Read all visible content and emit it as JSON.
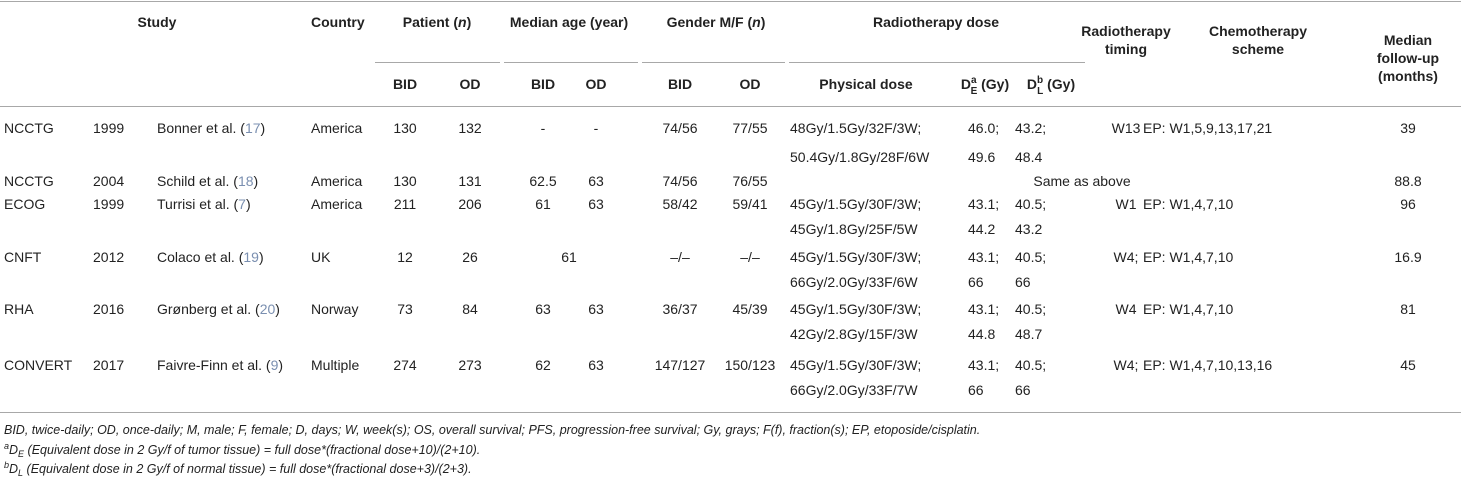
{
  "table": {
    "header": {
      "study": "Study",
      "country": "Country",
      "patient": [
        "Patient (",
        "n",
        ")"
      ],
      "age": "Median age (year)",
      "gender": [
        "Gender M/F (",
        "n",
        ")"
      ],
      "dose": "Radiotherapy dose",
      "timing": "Radiotherapy timing",
      "chemo": "Chemotherapy scheme",
      "followup": "Median follow-up (months)",
      "sub": [
        "BID",
        "OD",
        "BID",
        "OD",
        "BID",
        "OD",
        "Physical dose"
      ],
      "de": [
        "D",
        "a",
        "E",
        " (Gy)"
      ],
      "dl": [
        "D",
        "b",
        "L",
        " (Gy)"
      ]
    },
    "rows": [
      {
        "group": "NCCTG",
        "year": "1999",
        "author": [
          "Bonner et al. (",
          "17",
          ")"
        ],
        "country": "America",
        "patient": [
          "130",
          "132"
        ],
        "age": [
          "-",
          "-"
        ],
        "gender": [
          "74/56",
          "77/55"
        ],
        "dose": [
          "48Gy/1.5Gy/32F/3W;",
          "50.4Gy/1.8Gy/28F/6W"
        ],
        "de": [
          "46.0;",
          "49.6"
        ],
        "dl": [
          "43.2;",
          "48.4"
        ],
        "timing": "W13",
        "chemo": "EP: W1,5,9,13,17,21",
        "followup": "39"
      },
      {
        "group": "NCCTG",
        "year": "2004",
        "author": [
          "Schild et al. (",
          "18",
          ")"
        ],
        "country": "America",
        "patient": [
          "130",
          "131"
        ],
        "age": [
          "62.5",
          "63"
        ],
        "gender": [
          "74/56",
          "76/55"
        ],
        "same": "Same as above",
        "followup": "88.8"
      },
      {
        "group": "ECOG",
        "year": "1999",
        "author": [
          "Turrisi et al. (",
          "7",
          ")"
        ],
        "country": "America",
        "patient": [
          "211",
          "206"
        ],
        "age": [
          "61",
          "63"
        ],
        "gender": [
          "58/42",
          "59/41"
        ],
        "dose": [
          "45Gy/1.5Gy/30F/3W;",
          "45Gy/1.8Gy/25F/5W"
        ],
        "de": [
          "43.1;",
          "44.2"
        ],
        "dl": [
          "40.5;",
          "43.2"
        ],
        "timing": "W1",
        "chemo": "EP: W1,4,7,10",
        "followup": "96"
      },
      {
        "group": "CNFT",
        "year": "2012",
        "author": [
          "Colaco et al. (",
          "19",
          ")"
        ],
        "country": "UK",
        "patient": [
          "12",
          "26"
        ],
        "age": [
          "61"
        ],
        "gender": [
          "–/–",
          "–/–"
        ],
        "dose": [
          "45Gy/1.5Gy/30F/3W;",
          "66Gy/2.0Gy/33F/6W"
        ],
        "de": [
          "43.1;",
          "66"
        ],
        "dl": [
          "40.5;",
          "66"
        ],
        "timing": "W4;",
        "chemo": "EP: W1,4,7,10",
        "followup": "16.9"
      },
      {
        "group": "RHA",
        "year": "2016",
        "author": [
          "Grønberg et al. (",
          "20",
          ")"
        ],
        "country": "Norway",
        "patient": [
          "73",
          "84"
        ],
        "age": [
          "63",
          "63"
        ],
        "gender": [
          "36/37",
          "45/39"
        ],
        "dose": [
          "45Gy/1.5Gy/30F/3W;",
          "42Gy/2.8Gy/15F/3W"
        ],
        "de": [
          "43.1;",
          "44.8"
        ],
        "dl": [
          "40.5;",
          "48.7"
        ],
        "timing": "W4",
        "chemo": "EP: W1,4,7,10",
        "followup": "81"
      },
      {
        "group": "CONVERT",
        "year": "2017",
        "author": [
          "Faivre-Finn et al. (",
          "9",
          ")"
        ],
        "country": "Multiple",
        "patient": [
          "274",
          "273"
        ],
        "age": [
          "62",
          "63"
        ],
        "gender": [
          "147/127",
          "150/123"
        ],
        "dose": [
          "45Gy/1.5Gy/30F/3W;",
          "66Gy/2.0Gy/33F/7W"
        ],
        "de": [
          "43.1;",
          "66"
        ],
        "dl": [
          "40.5;",
          "66"
        ],
        "timing": "W4;",
        "chemo": "EP: W1,4,7,10,13,16",
        "followup": "45"
      }
    ],
    "footnotes": [
      [
        "BID, twice-daily; OD, once-daily; M, male; F, female; D, days; W, week(s); OS, overall survival; PFS, progression-free survival; Gy, grays; F(f), fraction(s); EP, etoposide/cisplatin."
      ],
      [
        "a",
        "D",
        "E",
        " (Equivalent dose in 2 Gy/f of tumor tissue) = full dose*(fractional dose+10)/(2+10)."
      ],
      [
        "b",
        "D",
        "L",
        " (Equivalent dose in 2 Gy/f of normal tissue) = full dose*(fractional dose+3)/(2+3)."
      ]
    ]
  }
}
